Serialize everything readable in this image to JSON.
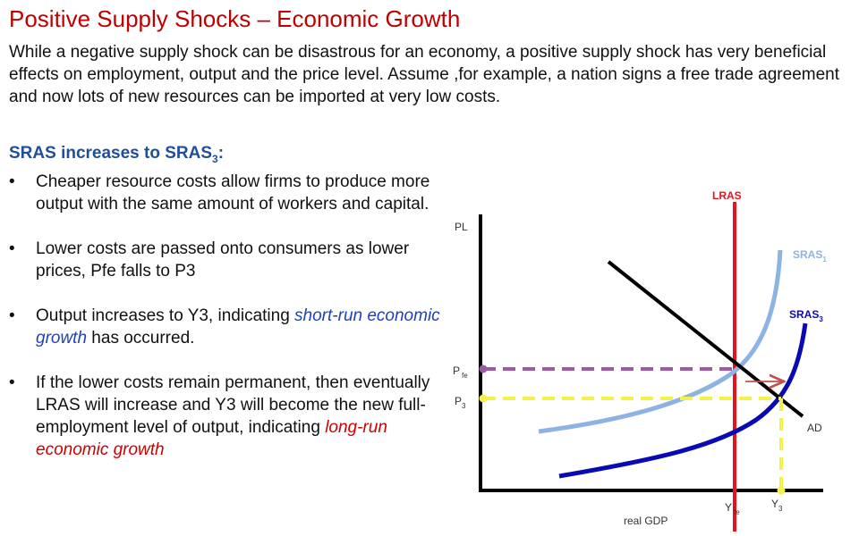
{
  "heading": "Positive Supply Shocks – Economic Growth",
  "intro": "While a negative supply shock can be disastrous for an economy, a positive supply shock has very beneficial effects on employment, output and the price level. Assume ,for example, a nation signs a free trade agreement and now lots of new resources can be imported at very low costs.",
  "subheading": {
    "text": "SRAS increases to SRAS",
    "sub": "3",
    "suffix": ":"
  },
  "bullet_marker": "•",
  "bullets": [
    {
      "text": "Cheaper resource costs allow firms to produce more output with the same amount of workers and capital."
    },
    {
      "text": "Lower costs are passed onto consumers as lower prices, Pfe falls to P3"
    },
    {
      "pre": "Output increases to Y3, indicating ",
      "em": "short-run economic growth",
      "post": " has occurred."
    },
    {
      "pre": "If the lower costs remain permanent, then eventually LRAS will increase and Y3 will become the new full-employment level of output, indicating ",
      "em": "long-run economic growth",
      "post": ""
    }
  ],
  "diagram": {
    "y_axis_label": "PL",
    "x_axis_label": "real GDP",
    "lras_label": "LRAS",
    "sras1_label": {
      "base": "SRAS",
      "sub": "1"
    },
    "sras3_label": {
      "base": "SRAS",
      "sub": "3"
    },
    "ad_label": "AD",
    "pfe_label": {
      "base": "P",
      "sub": "fe"
    },
    "p3_label": {
      "base": "P",
      "sub": "3"
    },
    "yfe_label": {
      "base": "Y",
      "sub": "fe"
    },
    "y3_label": {
      "base": "Y",
      "sub": "3"
    }
  },
  "colors": {
    "title": "#c00000",
    "subheading": "#1f4e9a",
    "lras": "#e8121c",
    "sras1": "#8db3e2",
    "sras3": "#0a0ab4",
    "ad": "#000000",
    "pfe_dash": "#9b59a6",
    "p3_dash": "#f2f24a",
    "shift_arrow": "#c0504d"
  }
}
